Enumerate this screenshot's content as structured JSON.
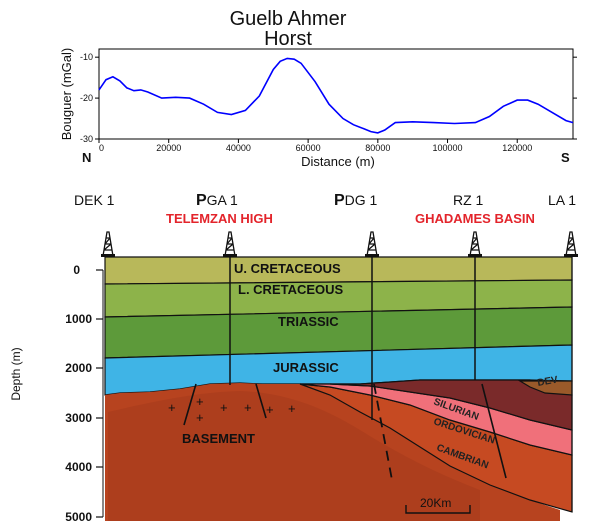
{
  "gravity_profile": {
    "title_line1": "Guelb Ahmer",
    "title_line2": "Horst",
    "y_label": "Bouguer (mGal)",
    "x_label": "Distance (m)",
    "end_left": "N",
    "end_right": "S",
    "curve_color": "#0000ff"
  },
  "chart_data": {
    "type": "line",
    "title": "Guelb Ahmer Horst",
    "xlabel": "Distance (m)",
    "ylabel": "Bouguer (mGal)",
    "xlim": [
      0,
      136000
    ],
    "ylim": [
      -30,
      -8
    ],
    "x_ticks": [
      0,
      20000,
      40000,
      60000,
      80000,
      100000,
      120000
    ],
    "y_ticks": [
      -10,
      -20,
      -30
    ],
    "x_tick_labels": [
      "0",
      "20000",
      "40000",
      "60000",
      "80000",
      "100000",
      "120000"
    ],
    "y_tick_labels": [
      "-10",
      "-20",
      "-30"
    ],
    "series": [
      {
        "x": [
          0,
          2000,
          4000,
          6000,
          8000,
          10000,
          12000,
          14000,
          18000,
          22000,
          26000,
          30000,
          34000,
          38000,
          42000,
          46000,
          50000,
          52000,
          54000,
          56000,
          58000,
          62000,
          66000,
          70000,
          73000,
          76000,
          78000,
          80000,
          82000,
          85000,
          90000,
          96000,
          102000,
          108000,
          112000,
          116000,
          120000,
          123000,
          126000,
          130000,
          134000,
          136000
        ],
        "y": [
          -18,
          -15.5,
          -14.8,
          -15.8,
          -17.5,
          -18.2,
          -18.0,
          -18.5,
          -20.0,
          -19.8,
          -20.0,
          -21.5,
          -23.5,
          -24.0,
          -23.0,
          -19.5,
          -13.0,
          -11.0,
          -10.3,
          -10.5,
          -11.5,
          -16.0,
          -21.5,
          -25.0,
          -26.5,
          -27.5,
          -28.2,
          -28.5,
          -27.8,
          -26.0,
          -25.8,
          -26.0,
          -26.2,
          -26.0,
          -24.5,
          -22.0,
          -20.5,
          -20.5,
          -21.5,
          -23.5,
          -25.5,
          -26.0
        ]
      }
    ]
  },
  "cross_section": {
    "wells": [
      {
        "name": "DEK 1"
      },
      {
        "name_bold": "P",
        "name_rest": "GA 1"
      },
      {
        "name_bold": "P",
        "name_rest": "DG 1"
      },
      {
        "name": "RZ 1"
      },
      {
        "name": "LA 1"
      }
    ],
    "regions": {
      "left": "TELEMZAN HIGH",
      "right": "GHADAMES BASIN"
    },
    "units": {
      "u_cretaceous": "U. CRETACEOUS",
      "l_cretaceous": "L. CRETACEOUS",
      "triassic": "TRIASSIC",
      "jurassic": "JURASSIC",
      "dev": "DEV",
      "silurian": "SILURIAN",
      "ordovician": "ORDOVICIAN",
      "cambrian": "CAMBRIAN",
      "basement": "BASEMENT"
    },
    "depth_axis": {
      "label": "Depth (m)",
      "ticks": [
        "0",
        "1000",
        "2000",
        "3000",
        "4000",
        "5000"
      ]
    },
    "scale_bar": "20Km",
    "colors": {
      "u_cretaceous": "#b8b85a",
      "l_cretaceous": "#8db34a",
      "triassic": "#5d9a3a",
      "jurassic": "#3fb4e6",
      "basement": "#b7431f",
      "silurian": "#7a2a2a",
      "ordovician": "#f0707a",
      "cambrian": "#c64a22",
      "dev": "#9a5a2a",
      "region_label": "#e3242b"
    }
  }
}
